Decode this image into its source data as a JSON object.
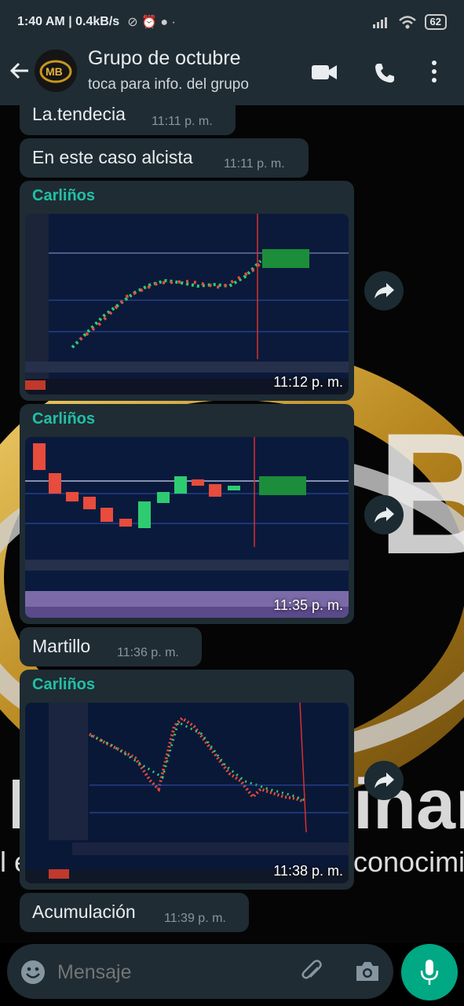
{
  "status": {
    "time": "1:40 AM",
    "speed": "0.4kB/s",
    "battery": "62"
  },
  "header": {
    "title": "Grupo de octubre",
    "subtitle": "toca para info. del grupo"
  },
  "messages": {
    "m1": {
      "text": "La.tendecia",
      "time": "11:11 p. m."
    },
    "m2": {
      "text": "En este caso alcista",
      "time": "11:11 p. m."
    },
    "m3": {
      "sender": "Carliños",
      "time": "11:12 p. m."
    },
    "m4": {
      "sender": "Carliños",
      "time": "11:35 p. m."
    },
    "m5": {
      "text": "Martillo",
      "time": "11:36 p. m."
    },
    "m6": {
      "sender": "Carliños",
      "time": "11:38 p. m."
    },
    "m7": {
      "text": "Acumulación",
      "time": "11:39 p. m."
    }
  },
  "input": {
    "placeholder": "Mensaje"
  },
  "colors": {
    "header_bg": "#1f2c34",
    "accent": "#00a884",
    "sender": "#21c0a6"
  }
}
